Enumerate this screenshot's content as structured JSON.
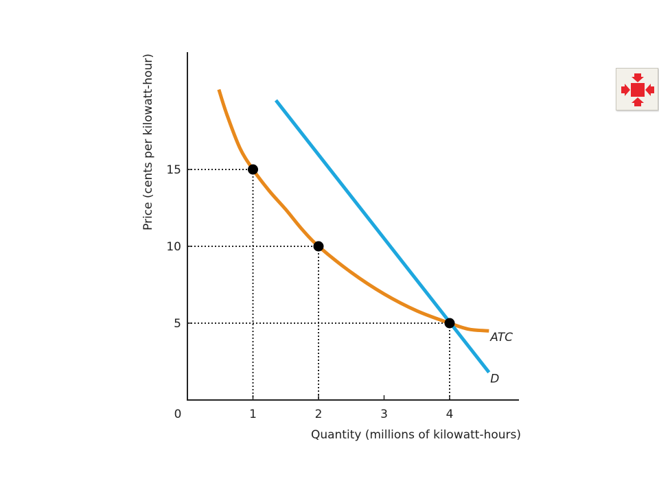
{
  "colors": {
    "atc_curve": "#e8891c",
    "demand_curve": "#1ea7de",
    "axis": "#222222",
    "guide": "#222222",
    "marker": "#000000",
    "nav_icon": "#e8242c"
  },
  "nav_button": {
    "icon": "collapse-arrows-icon"
  },
  "chart_data": {
    "type": "line",
    "title": "",
    "xlabel": "Quantity (millions of kilowatt-hours)",
    "ylabel": "Price (cents per kilowatt-hour)",
    "xlim": [
      0,
      5
    ],
    "ylim": [
      0,
      23
    ],
    "x_ticks": [
      0,
      1,
      2,
      3,
      4
    ],
    "x_tick_labels": [
      "0",
      "1",
      "2",
      "3",
      "4"
    ],
    "y_ticks": [
      5,
      10,
      15
    ],
    "y_tick_labels": [
      "5",
      "10",
      "15"
    ],
    "grid": false,
    "series": [
      {
        "name": "ATC",
        "color": "#e8891c",
        "points": [
          [
            0.48,
            20.2
          ],
          [
            0.6,
            18.6
          ],
          [
            0.8,
            16.4
          ],
          [
            1,
            15
          ],
          [
            1.25,
            13.6
          ],
          [
            1.5,
            12.4
          ],
          [
            1.75,
            11.1
          ],
          [
            2,
            10
          ],
          [
            2.5,
            8.3
          ],
          [
            3,
            6.9
          ],
          [
            3.5,
            5.8
          ],
          [
            4,
            5
          ],
          [
            4.3,
            4.6
          ],
          [
            4.6,
            4.5
          ]
        ]
      },
      {
        "name": "D",
        "color": "#1ea7de",
        "points": [
          [
            1.35,
            19.5
          ],
          [
            4.6,
            1.8
          ]
        ]
      }
    ],
    "marked_points": [
      {
        "x": 1,
        "y": 15
      },
      {
        "x": 2,
        "y": 10
      },
      {
        "x": 4,
        "y": 5
      }
    ]
  }
}
